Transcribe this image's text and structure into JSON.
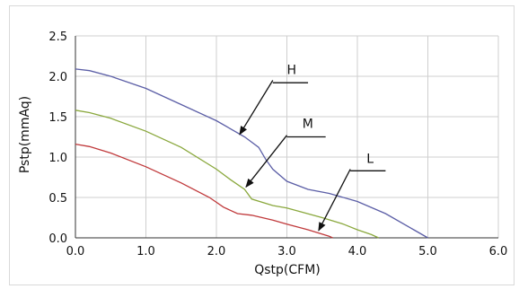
{
  "chart_data": {
    "type": "line",
    "title": "",
    "xlabel": "Qstp(CFM)",
    "ylabel": "Pstp(mmAq)",
    "xlim": [
      0,
      6
    ],
    "ylim": [
      0,
      2.5
    ],
    "grid": true,
    "xticks": [
      "0.0",
      "1.0",
      "2.0",
      "3.0",
      "4.0",
      "5.0",
      "6.0"
    ],
    "yticks": [
      "0.0",
      "0.5",
      "1.0",
      "1.5",
      "2.0",
      "2.5"
    ],
    "series": [
      {
        "name": "H",
        "color": "#5b5ea6",
        "x": [
          0,
          0.2,
          0.5,
          1.0,
          1.5,
          2.0,
          2.4,
          2.6,
          2.7,
          2.8,
          3.0,
          3.3,
          3.6,
          4.0,
          4.4,
          4.8,
          5.0
        ],
        "y": [
          2.09,
          2.07,
          2.0,
          1.85,
          1.65,
          1.45,
          1.25,
          1.12,
          0.97,
          0.85,
          0.7,
          0.6,
          0.55,
          0.45,
          0.3,
          0.1,
          0.0
        ]
      },
      {
        "name": "M",
        "color": "#8aa83d",
        "x": [
          0,
          0.2,
          0.5,
          1.0,
          1.5,
          2.0,
          2.2,
          2.4,
          2.5,
          2.8,
          3.0,
          3.5,
          3.8,
          4.0,
          4.2,
          4.3
        ],
        "y": [
          1.58,
          1.55,
          1.48,
          1.32,
          1.12,
          0.85,
          0.72,
          0.6,
          0.48,
          0.4,
          0.37,
          0.25,
          0.17,
          0.1,
          0.04,
          0.0
        ]
      },
      {
        "name": "L",
        "color": "#c0393b",
        "x": [
          0,
          0.2,
          0.5,
          1.0,
          1.5,
          1.9,
          2.1,
          2.3,
          2.5,
          2.8,
          3.0,
          3.3,
          3.6,
          3.65
        ],
        "y": [
          1.16,
          1.13,
          1.05,
          0.88,
          0.68,
          0.5,
          0.38,
          0.3,
          0.28,
          0.22,
          0.17,
          0.1,
          0.02,
          0.0
        ]
      }
    ],
    "annotations": [
      {
        "text": "H",
        "series": "H",
        "point": [
          2.33,
          1.28
        ],
        "arrow_from": [
          2.8,
          1.95
        ],
        "label_at": [
          3.0,
          2.03
        ],
        "underline": [
          2.8,
          3.3,
          1.92
        ]
      },
      {
        "text": "M",
        "series": "M",
        "point": [
          2.42,
          0.63
        ],
        "arrow_from": [
          3.0,
          1.27
        ],
        "label_at": [
          3.22,
          1.36
        ],
        "underline": [
          3.0,
          3.55,
          1.25
        ]
      },
      {
        "text": "L",
        "series": "L",
        "point": [
          3.45,
          0.09
        ],
        "arrow_from": [
          3.9,
          0.85
        ],
        "label_at": [
          4.13,
          0.93
        ],
        "underline": [
          3.9,
          4.4,
          0.83
        ]
      }
    ]
  }
}
